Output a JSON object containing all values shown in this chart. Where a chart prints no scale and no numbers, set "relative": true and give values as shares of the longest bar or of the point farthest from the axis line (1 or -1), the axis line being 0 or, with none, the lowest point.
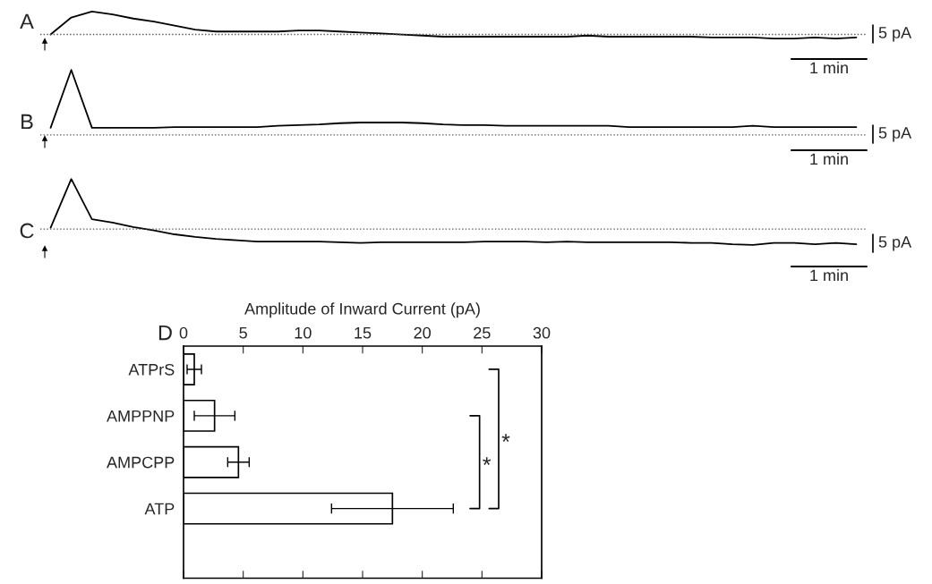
{
  "chart_data": [
    {
      "type": "line",
      "relative": true,
      "categories": [
        null,
        null,
        null,
        null,
        null,
        null,
        null,
        null,
        null,
        null,
        null,
        null,
        null,
        null,
        null,
        null,
        null,
        null,
        null,
        null,
        null,
        null,
        null,
        null,
        null,
        null,
        null,
        null,
        null,
        null,
        null,
        null,
        null,
        null,
        null,
        null,
        null,
        null,
        null,
        null
      ],
      "series": [
        {
          "color": "#000000",
          "values": [
            0.15,
            0.78,
            1,
            0.89,
            0.74,
            0.63,
            0.48,
            0.33,
            0.26,
            0.26,
            0.26,
            0.26,
            0.3,
            0.3,
            0.26,
            0.22,
            0.19,
            0.15,
            0.11,
            0.07,
            0.07,
            0.07,
            0.07,
            0.07,
            0.07,
            0.07,
            0.11,
            0.07,
            0.07,
            0.07,
            0.07,
            0.07,
            0.04,
            0.04,
            0.04,
            0,
            0,
            0.04,
            0,
            0.04
          ]
        }
      ],
      "ref_lines": [
        {
          "axis": "y",
          "value": 0.15,
          "line_style": "dotted",
          "color": "#555555"
        }
      ],
      "annotations": [
        "A",
        "5 pA",
        "1 min"
      ]
    },
    {
      "type": "line",
      "relative": true,
      "categories": [
        null,
        null,
        null,
        null,
        null,
        null,
        null,
        null,
        null,
        null,
        null,
        null,
        null,
        null,
        null,
        null,
        null,
        null,
        null,
        null,
        null,
        null,
        null,
        null,
        null,
        null,
        null,
        null,
        null,
        null,
        null,
        null,
        null,
        null,
        null,
        null,
        null,
        null,
        null,
        null
      ],
      "series": [
        {
          "color": "#000000",
          "values": [
            0.11,
            1,
            0.11,
            0.11,
            0.11,
            0.11,
            0.12,
            0.12,
            0.12,
            0.12,
            0.12,
            0.14,
            0.15,
            0.16,
            0.18,
            0.19,
            0.19,
            0.19,
            0.18,
            0.16,
            0.15,
            0.15,
            0.14,
            0.14,
            0.14,
            0.14,
            0.14,
            0.14,
            0.12,
            0.12,
            0.12,
            0.12,
            0.12,
            0.12,
            0.14,
            0.12,
            0.12,
            0.12,
            0.12,
            0.12
          ]
        }
      ],
      "ref_lines": [
        {
          "axis": "y",
          "value": 0,
          "line_style": "dotted",
          "color": "#555555"
        }
      ],
      "annotations": [
        "B",
        "5 pA",
        "1 min"
      ]
    },
    {
      "type": "line",
      "relative": true,
      "categories": [
        null,
        null,
        null,
        null,
        null,
        null,
        null,
        null,
        null,
        null,
        null,
        null,
        null,
        null,
        null,
        null,
        null,
        null,
        null,
        null,
        null,
        null,
        null,
        null,
        null,
        null,
        null,
        null,
        null,
        null,
        null,
        null,
        null,
        null,
        null,
        null,
        null,
        null,
        null,
        null
      ],
      "series": [
        {
          "color": "#000000",
          "values": [
            0.26,
            1,
            0.39,
            0.34,
            0.27,
            0.22,
            0.16,
            0.12,
            0.09,
            0.07,
            0.05,
            0.05,
            0.05,
            0.05,
            0.04,
            0.03,
            0.04,
            0.04,
            0.04,
            0.04,
            0.04,
            0.05,
            0.05,
            0.05,
            0.04,
            0.05,
            0.04,
            0.04,
            0.04,
            0.04,
            0.04,
            0.03,
            0.03,
            0.01,
            0,
            0.03,
            0.03,
            0.01,
            0.03,
            0.01
          ]
        }
      ],
      "ref_lines": [
        {
          "axis": "y",
          "value": 0.24,
          "line_style": "dotted",
          "color": "#555555"
        }
      ],
      "annotations": [
        "C",
        "5 pA",
        "1 min"
      ]
    },
    {
      "type": "bar",
      "orientation": "horizontal",
      "title": "D",
      "xlabel": "Amplitude of Inward Current (pA)",
      "categories": [
        "ATPrS",
        "AMPPNP",
        "AMPCPP",
        "ATP"
      ],
      "values": [
        0.9,
        2.6,
        4.6,
        17.5
      ],
      "errors": [
        0.6,
        1.7,
        0.9,
        5.1
      ],
      "color": "#ffffff",
      "xlim": [
        0,
        30
      ],
      "xticks": [
        0,
        5,
        10,
        15,
        20,
        25,
        30
      ],
      "annotations": [
        "*",
        "*"
      ]
    }
  ]
}
